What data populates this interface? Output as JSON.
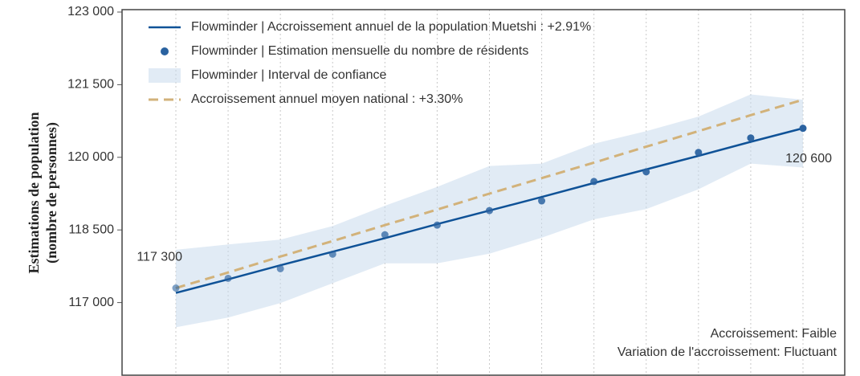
{
  "chart_data": {
    "type": "line",
    "y_label": [
      "Estimations de population",
      "(nombre de personnes)"
    ],
    "categories": [
      null,
      null,
      null,
      null,
      null,
      null,
      null,
      null,
      null,
      null,
      null,
      null,
      null
    ],
    "ylim": [
      115500,
      123000
    ],
    "yticks": [
      {
        "value": 117000,
        "label": "117 000"
      },
      {
        "value": 118500,
        "label": "118 500"
      },
      {
        "value": 120000,
        "label": "120 000"
      },
      {
        "value": 121500,
        "label": "121 500"
      },
      {
        "value": 123000,
        "label": "123 000"
      }
    ],
    "grid": true,
    "legend": "upper left",
    "series": [
      {
        "name": "Flowminder | Accroissement annuel de la population Muetshi : +2.91%",
        "style": "line",
        "color": "#0f5297",
        "values": [
          117200,
          117480,
          117770,
          118050,
          118330,
          118620,
          118900,
          119180,
          119470,
          119750,
          120030,
          120320,
          120600
        ]
      },
      {
        "name": "Flowminder | Estimation mensuelle du nombre de résidents",
        "style": "points",
        "color": "#2a62a0",
        "values": [
          117300,
          117500,
          117700,
          118000,
          118400,
          118600,
          118900,
          119100,
          119500,
          119700,
          120100,
          120400,
          120600
        ],
        "value_labels": [
          "117 300",
          null,
          null,
          null,
          null,
          null,
          null,
          null,
          null,
          null,
          null,
          null,
          "120 600"
        ]
      },
      {
        "name": "Flowminder | Interval de confiance",
        "style": "band",
        "color": "#c9daec",
        "upper": [
          118090,
          118200,
          118300,
          118580,
          119000,
          119390,
          119820,
          119870,
          120280,
          120540,
          120840,
          121300,
          121190
        ],
        "lower": [
          116490,
          116690,
          116990,
          117400,
          117810,
          117810,
          118010,
          118340,
          118720,
          118930,
          119340,
          119870,
          119790
        ]
      },
      {
        "name": "Accroissement annuel moyen national : +3.30%",
        "style": "dashed",
        "color": "#d2b27a",
        "values": [
          117300,
          117620,
          117950,
          118270,
          118600,
          118920,
          119250,
          119570,
          119890,
          120220,
          120540,
          120870,
          121190
        ]
      }
    ],
    "annotations": [
      "Accroissement: Faible",
      "Variation de l'accroissement: Fluctuant"
    ]
  }
}
